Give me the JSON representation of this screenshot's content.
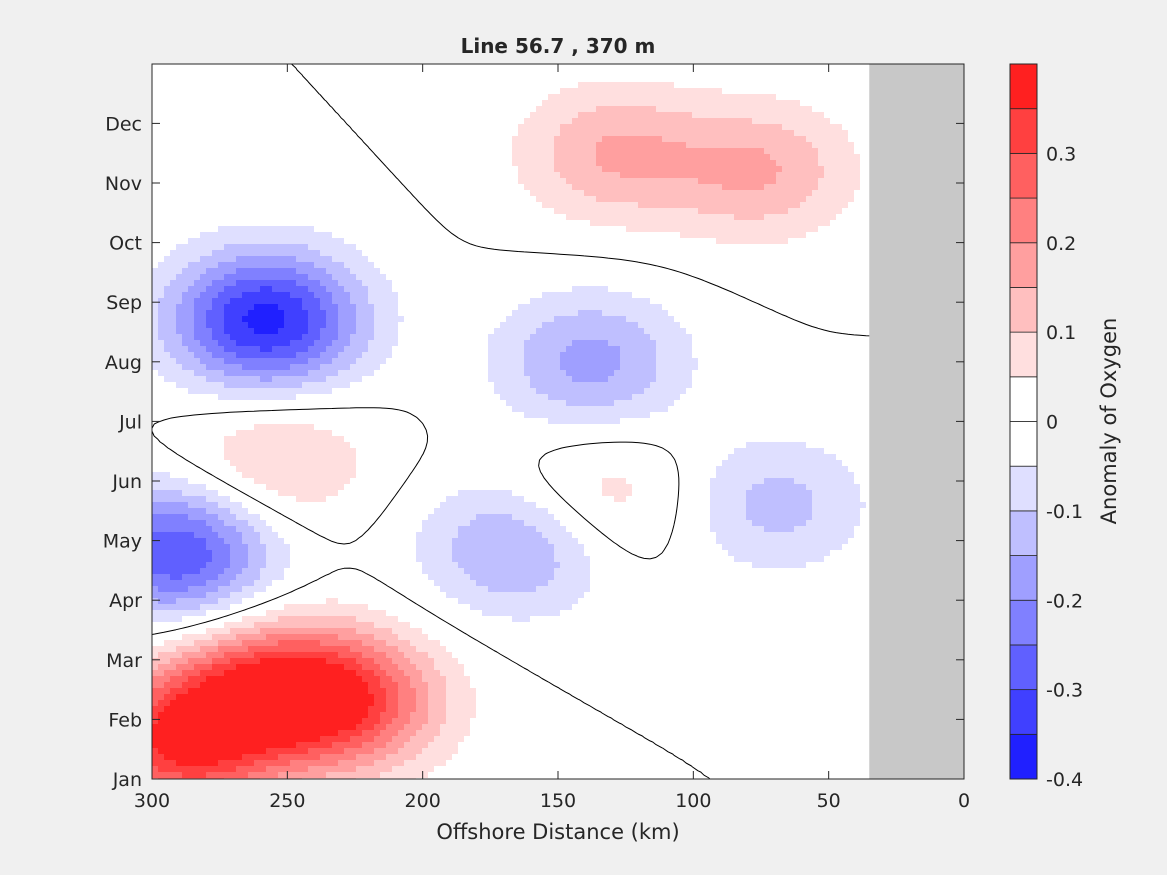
{
  "chart_data": {
    "type": "heatmap",
    "title": "Line 56.7 , 370 m",
    "xlabel": "Offshore Distance (km)",
    "ylabel": "",
    "xlim": [
      300,
      0
    ],
    "x_ticks": [
      300,
      250,
      200,
      150,
      100,
      50,
      0
    ],
    "y_categories": [
      "Jan",
      "Feb",
      "Mar",
      "Apr",
      "May",
      "Jun",
      "Jul",
      "Aug",
      "Sep",
      "Oct",
      "Nov",
      "Dec"
    ],
    "colorbar": {
      "label": "Anomaly of Oxygen",
      "range": [
        -0.4,
        0.4
      ],
      "levels": [
        -0.4,
        -0.35,
        -0.3,
        -0.25,
        -0.2,
        -0.15,
        -0.1,
        -0.05,
        0,
        0.05,
        0.1,
        0.15,
        0.2,
        0.25,
        0.3,
        0.35,
        0.4
      ],
      "ticks": [
        -0.4,
        -0.3,
        -0.2,
        -0.1,
        0,
        0.1,
        0.2,
        0.3
      ],
      "tick_labels": [
        "-0.4",
        "-0.3",
        "-0.2",
        "-0.1",
        "0",
        "0.1",
        "0.2",
        "0.3"
      ],
      "colormap": "blue-white-red"
    },
    "no_data_region": {
      "x_range": [
        35,
        0
      ],
      "color": "#c8c8c8"
    },
    "zero_contour": true,
    "features": [
      {
        "kind": "max",
        "x": 290,
        "month": 1.6,
        "value": 0.33
      },
      {
        "kind": "max",
        "x": 228,
        "month": 2.3,
        "value": 0.3
      },
      {
        "kind": "max",
        "x": 260,
        "month": 2.5,
        "value": 0.28
      },
      {
        "kind": "min",
        "x": 258,
        "month": 8.7,
        "value": -0.37
      },
      {
        "kind": "min",
        "x": 290,
        "month": 4.8,
        "value": -0.3
      },
      {
        "kind": "min",
        "x": 138,
        "month": 8.0,
        "value": -0.17
      },
      {
        "kind": "min",
        "x": 165,
        "month": 4.9,
        "value": -0.17
      },
      {
        "kind": "min",
        "x": 70,
        "month": 5.6,
        "value": -0.12
      },
      {
        "kind": "max",
        "x": 130,
        "month": 11.5,
        "value": 0.15
      },
      {
        "kind": "max",
        "x": 75,
        "month": 11.2,
        "value": 0.15
      },
      {
        "kind": "max",
        "x": 255,
        "month": 6.3,
        "value": 0.12
      },
      {
        "kind": "max",
        "x": 135,
        "month": 5.7,
        "value": 0.1
      }
    ]
  }
}
